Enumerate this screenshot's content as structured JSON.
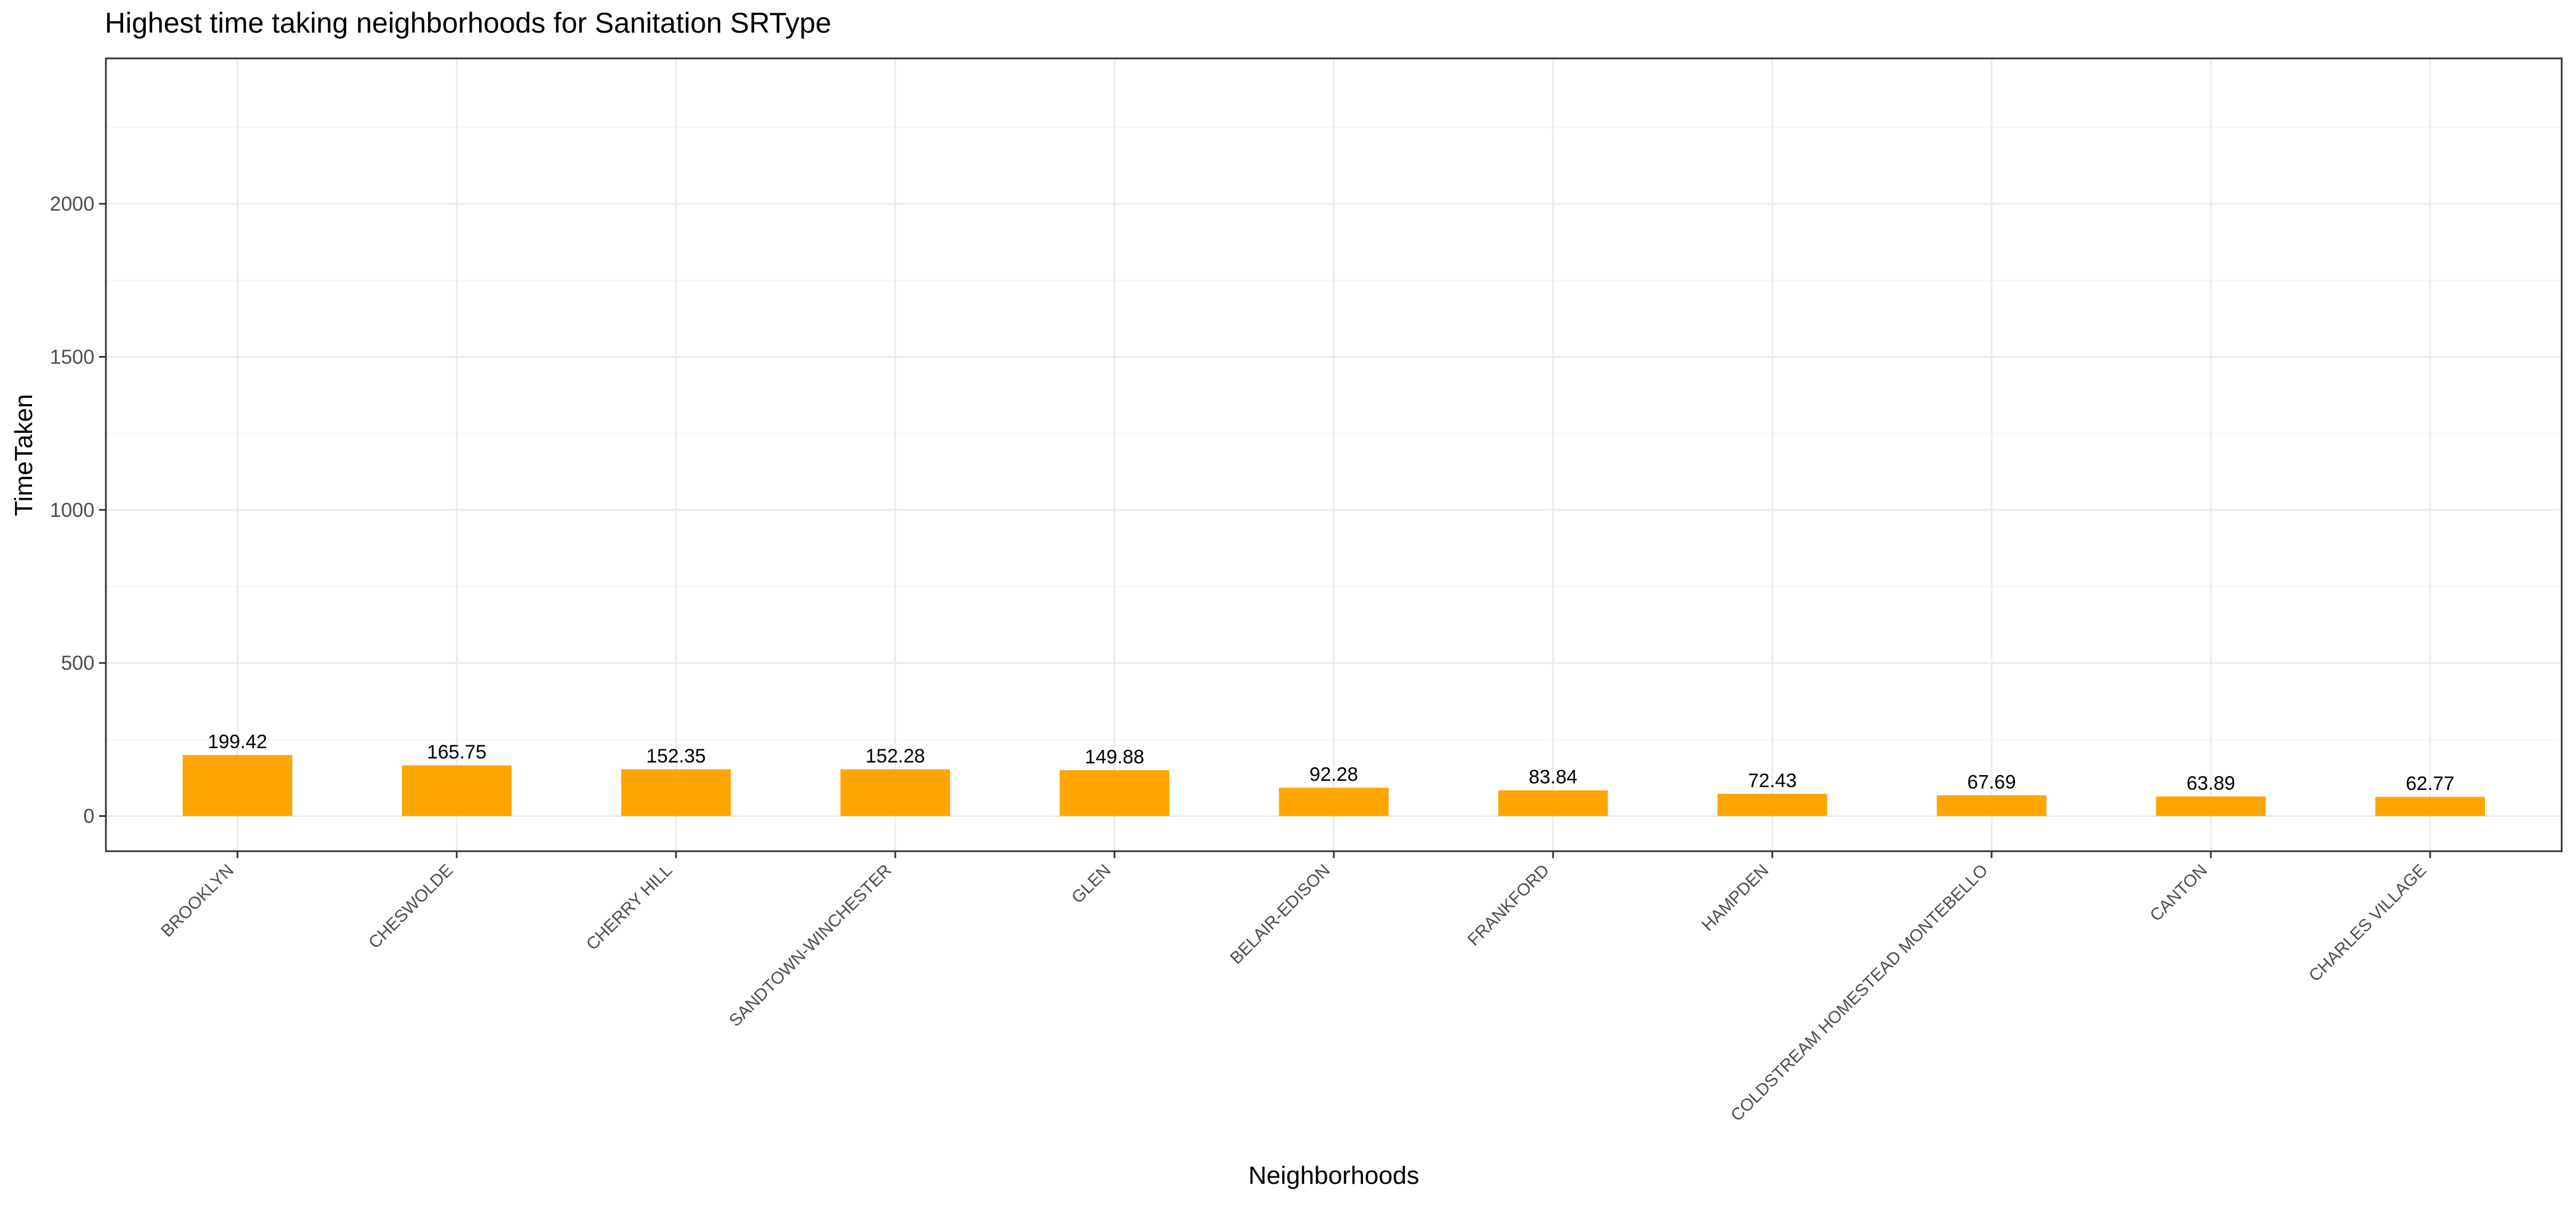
{
  "chart_data": {
    "type": "bar",
    "title": "Highest time taking neighborhoods for Sanitation SRType",
    "xlabel": "Neighborhoods",
    "ylabel": "TimeTaken",
    "categories": [
      "BROOKLYN",
      "CHESWOLDE",
      "CHERRY HILL",
      "SANDTOWN-WINCHESTER",
      "GLEN",
      "BELAIR-EDISON",
      "FRANKFORD",
      "HAMPDEN",
      "COLDSTREAM HOMESTEAD MONTEBELLO",
      "CANTON",
      "CHARLES VILLAGE"
    ],
    "values": [
      199.42,
      165.75,
      152.35,
      152.28,
      149.88,
      92.28,
      83.84,
      72.43,
      67.69,
      63.89,
      62.77
    ],
    "data_labels": [
      "199.42",
      "165.75",
      "152.35",
      "152.28",
      "149.88",
      "92.28",
      "83.84",
      "72.43",
      "67.69",
      "63.89",
      "62.77"
    ],
    "ylim": [
      -115,
      2475
    ],
    "yticks": [
      0,
      500,
      1000,
      1500,
      2000
    ],
    "ytick_labels": [
      "0",
      "500",
      "1000",
      "1500",
      "2000"
    ],
    "grid": true,
    "legend": "none",
    "colors": {
      "bar": "#FFA500",
      "grid_major": "#ebebeb",
      "grid_minor": "#f5f5f5",
      "panel_border": "#333333",
      "tick_text": "#4d4d4d"
    }
  }
}
